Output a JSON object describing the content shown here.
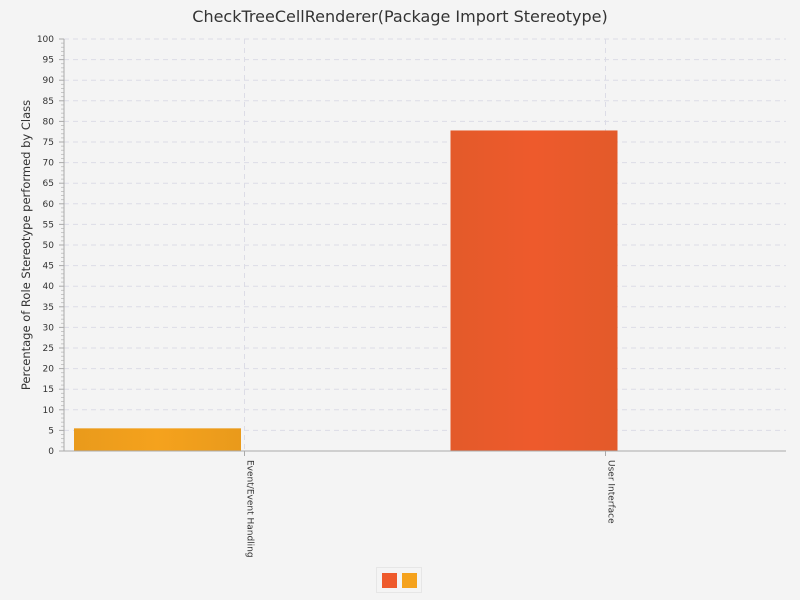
{
  "chart_data": {
    "type": "bar",
    "title": "CheckTreeCellRenderer(Package Import Stereotype)",
    "xlabel": "",
    "ylabel": "Percentage of Role Stereotype performed by Class",
    "categories": [
      "Event/Event Handling",
      "User Interface"
    ],
    "series": [
      {
        "values": [
          5.5,
          null
        ],
        "color": "#f5a21d"
      },
      {
        "values": [
          null,
          77.8
        ],
        "color": "#ee5a2c"
      }
    ],
    "ylim": [
      0,
      100
    ],
    "yticks": [
      0,
      5,
      10,
      15,
      20,
      25,
      30,
      35,
      40,
      45,
      50,
      55,
      60,
      65,
      70,
      75,
      80,
      85,
      90,
      95,
      100
    ],
    "grid": true,
    "legend": {
      "position": "bottom",
      "entries": [
        "",
        ""
      ],
      "colors": [
        "#ee5a2c",
        "#f5a21d"
      ]
    }
  }
}
